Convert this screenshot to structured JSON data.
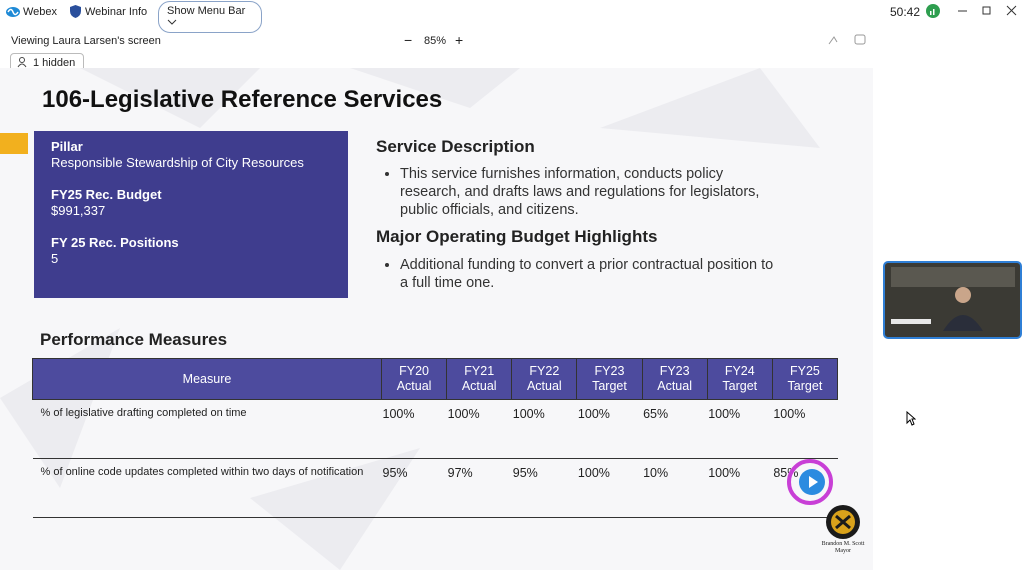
{
  "toolbar": {
    "app": "Webex",
    "webinar_info": "Webinar Info",
    "menu_button": "Show Menu Bar",
    "timer": "50:42"
  },
  "share_bar": {
    "viewing": "Viewing Laura Larsen's screen",
    "zoom_out": "−",
    "zoom": "85%",
    "zoom_in": "+"
  },
  "hidden": "1 hidden",
  "slide": {
    "title": "106-Legislative Reference Services",
    "pillar": {
      "label": "Pillar",
      "value": "Responsible Stewardship of City Resources"
    },
    "budget": {
      "label": "FY25 Rec. Budget",
      "value": "$991,337"
    },
    "positions": {
      "label": "FY 25 Rec. Positions",
      "value": "5"
    },
    "service_description": {
      "heading": "Service Description",
      "bullets": [
        "This service furnishes information, conducts policy research, and drafts laws and regulations for legislators, public officials, and citizens."
      ]
    },
    "highlights": {
      "heading": "Major Operating Budget Highlights",
      "bullets": [
        "Additional funding to convert a prior contractual position to a full time one."
      ]
    },
    "performance": {
      "heading": "Performance Measures",
      "columns": [
        [
          "Measure"
        ],
        [
          "FY20",
          "Actual"
        ],
        [
          "FY21",
          "Actual"
        ],
        [
          "FY22",
          "Actual"
        ],
        [
          "FY23",
          "Target"
        ],
        [
          "FY23",
          "Actual"
        ],
        [
          "FY24",
          "Target"
        ],
        [
          "FY25",
          "Target"
        ]
      ],
      "rows": [
        [
          "% of legislative drafting completed on time",
          "100%",
          "100%",
          "100%",
          "100%",
          "65%",
          "100%",
          "100%"
        ],
        [
          "% of online code updates completed within two days of notification",
          "95%",
          "97%",
          "95%",
          "100%",
          "10%",
          "100%",
          "85%"
        ]
      ]
    },
    "seal": {
      "name": "Brandon M. Scott",
      "role": "Mayor"
    }
  }
}
